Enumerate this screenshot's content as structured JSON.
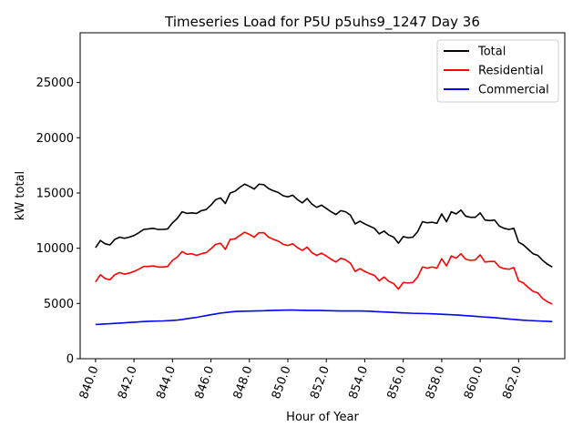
{
  "chart_data": {
    "type": "line",
    "title": "Timeseries Load for P5U p5uhs9_1247  Day 36",
    "xlabel": "Hour of Year",
    "ylabel": "kW total",
    "xlim": [
      839.2,
      864.4
    ],
    "ylim": [
      0,
      29500
    ],
    "xticks": [
      840.0,
      842.0,
      844.0,
      846.0,
      848.0,
      850.0,
      852.0,
      854.0,
      856.0,
      858.0,
      860.0,
      862.0
    ],
    "xtick_labels": [
      "840.0",
      "842.0",
      "844.0",
      "846.0",
      "848.0",
      "850.0",
      "852.0",
      "854.0",
      "856.0",
      "858.0",
      "860.0",
      "862.0"
    ],
    "yticks": [
      0,
      5000,
      10000,
      15000,
      20000,
      25000
    ],
    "ytick_labels": [
      "0",
      "5000",
      "10000",
      "15000",
      "20000",
      "25000"
    ],
    "legend_position": "top-right",
    "x_start": 840.0,
    "x_step": 0.25,
    "series": [
      {
        "name": "Total",
        "color": "#000000",
        "values": [
          10050,
          10700,
          10400,
          10300,
          10800,
          11000,
          10900,
          11000,
          11150,
          11400,
          11700,
          11750,
          11800,
          11700,
          11700,
          11750,
          12300,
          12700,
          13300,
          13150,
          13200,
          13150,
          13400,
          13500,
          13900,
          14400,
          14550,
          14050,
          15000,
          15150,
          15500,
          15800,
          15600,
          15350,
          15800,
          15750,
          15400,
          15200,
          15050,
          14750,
          14650,
          14800,
          14400,
          14100,
          14500,
          14000,
          13700,
          13900,
          13600,
          13300,
          13050,
          13400,
          13300,
          13000,
          12200,
          12450,
          12200,
          12000,
          11800,
          11300,
          11550,
          11200,
          11000,
          10450,
          11050,
          10950,
          11000,
          11500,
          12400,
          12300,
          12350,
          12250,
          13100,
          12400,
          13300,
          13100,
          13450,
          12900,
          12800,
          12800,
          13200,
          12550,
          12500,
          12550,
          12000,
          11800,
          11700,
          11800,
          10550,
          10300,
          9900,
          9500,
          9350,
          8900,
          8550,
          8300
        ]
      },
      {
        "name": "Residential",
        "color": "#ff0000",
        "values": [
          6950,
          7600,
          7250,
          7150,
          7600,
          7800,
          7650,
          7750,
          7900,
          8100,
          8350,
          8350,
          8400,
          8300,
          8300,
          8350,
          8900,
          9200,
          9700,
          9450,
          9500,
          9350,
          9500,
          9600,
          9950,
          10350,
          10450,
          9900,
          10800,
          10850,
          11150,
          11450,
          11250,
          11000,
          11400,
          11400,
          11000,
          10800,
          10650,
          10350,
          10250,
          10400,
          10050,
          9800,
          10100,
          9600,
          9350,
          9550,
          9300,
          9000,
          8750,
          9100,
          8950,
          8650,
          7900,
          8150,
          7900,
          7700,
          7550,
          7050,
          7400,
          7000,
          6800,
          6300,
          6900,
          6850,
          6900,
          7400,
          8300,
          8200,
          8300,
          8200,
          9050,
          8400,
          9300,
          9100,
          9500,
          9000,
          8900,
          8950,
          9400,
          8750,
          8800,
          8800,
          8300,
          8150,
          8100,
          8250,
          7050,
          6850,
          6450,
          6100,
          5950,
          5450,
          5150,
          4950
        ]
      },
      {
        "name": "Commercial",
        "color": "#0000ff",
        "values": [
          3100,
          3120,
          3150,
          3170,
          3200,
          3220,
          3250,
          3280,
          3300,
          3330,
          3360,
          3380,
          3400,
          3410,
          3420,
          3440,
          3470,
          3500,
          3550,
          3620,
          3680,
          3740,
          3820,
          3900,
          3980,
          4050,
          4130,
          4180,
          4230,
          4270,
          4290,
          4300,
          4310,
          4320,
          4330,
          4340,
          4360,
          4370,
          4380,
          4390,
          4400,
          4400,
          4390,
          4380,
          4370,
          4370,
          4370,
          4360,
          4350,
          4340,
          4330,
          4320,
          4320,
          4320,
          4320,
          4320,
          4310,
          4300,
          4270,
          4250,
          4230,
          4210,
          4190,
          4170,
          4150,
          4130,
          4110,
          4100,
          4090,
          4080,
          4060,
          4040,
          4020,
          4000,
          3980,
          3960,
          3930,
          3900,
          3870,
          3840,
          3800,
          3770,
          3740,
          3710,
          3670,
          3630,
          3590,
          3560,
          3520,
          3490,
          3460,
          3440,
          3420,
          3400,
          3380,
          3360
        ]
      }
    ]
  }
}
